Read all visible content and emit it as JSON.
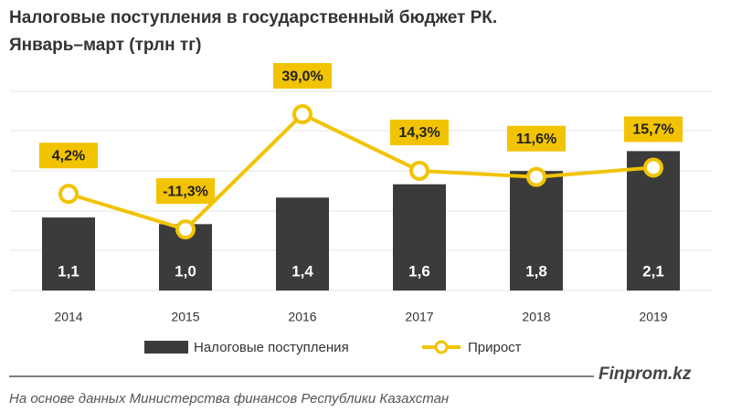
{
  "chart_data": {
    "type": "bar",
    "title": "Налоговые поступления в государственный бюджет РК.",
    "subtitle": "Январь–март (трлн тг)",
    "categories": [
      "2014",
      "2015",
      "2016",
      "2017",
      "2018",
      "2019"
    ],
    "series": [
      {
        "name": "Налоговые поступления",
        "type": "bar",
        "color": "#3b3b3b",
        "values": [
          1.1,
          1.0,
          1.4,
          1.6,
          1.8,
          2.1
        ],
        "value_labels": [
          "1,1",
          "1,0",
          "1,4",
          "1,6",
          "1,8",
          "2,1"
        ]
      },
      {
        "name": "Прирост",
        "type": "line",
        "axis": "y2",
        "color": "#f2c300",
        "values": [
          4.2,
          -11.3,
          39.0,
          14.3,
          11.6,
          15.7
        ],
        "value_labels": [
          "4,2%",
          "-11,3%",
          "39,0%",
          "14,3%",
          "11,6%",
          "15,7%"
        ]
      }
    ],
    "ylim": [
      0,
      3
    ],
    "y2lim": [
      -38,
      49
    ],
    "brand": "Finprom.kz",
    "source": "На основе данных  Министерства финансов  Республики Казахстан"
  }
}
